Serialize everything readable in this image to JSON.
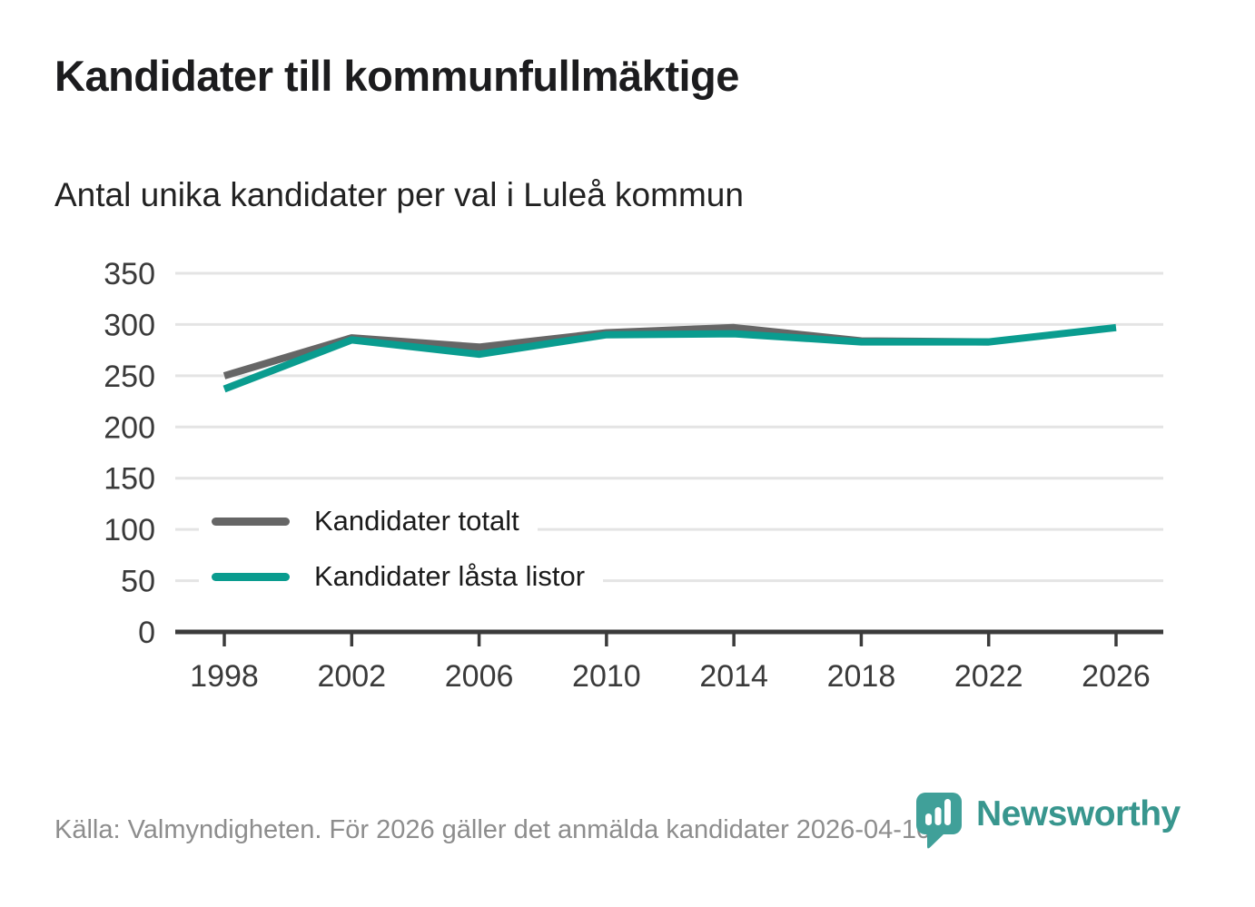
{
  "chart_data": {
    "type": "line",
    "title": "Kandidater till kommunfullmäktige",
    "subtitle": "Antal unika kandidater per val i Luleå kommun",
    "x": [
      1998,
      2002,
      2006,
      2010,
      2014,
      2018,
      2022,
      2026
    ],
    "series": [
      {
        "name": "Kandidater totalt",
        "color": "#666666",
        "values": [
          250,
          287,
          278,
          292,
          297,
          284,
          283,
          null
        ]
      },
      {
        "name": "Kandidater låsta listor",
        "color": "#0a9c8f",
        "values": [
          237,
          285,
          271,
          290,
          291,
          283,
          283,
          297
        ]
      }
    ],
    "xlabel": "",
    "ylabel": "",
    "ylim": [
      0,
      350
    ],
    "ytick_step": 50,
    "grid": "horizontal",
    "legend_position": "inside-left"
  },
  "footer": {
    "source": "Källa: Valmyndigheten. För 2026 gäller det anmälda kandidater 2026-04-10."
  },
  "logo": {
    "text": "Newsworthy",
    "icon": "bar-chart-bubble-icon",
    "icon_color": "#40a099",
    "text_color": "#38968e"
  }
}
